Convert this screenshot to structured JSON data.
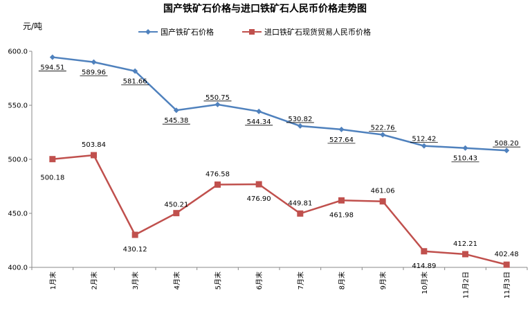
{
  "chart_data": {
    "type": "line",
    "title": "国产铁矿石价格与进口铁矿石人民币价格走势图",
    "ylabel": "元/吨",
    "xlabel": "",
    "ylim": [
      400,
      600
    ],
    "yticks": [
      "600.0",
      "550.0",
      "500.0",
      "450.0",
      "400.0"
    ],
    "grid": false,
    "legend_position": "top",
    "categories": [
      "1月末",
      "2月末",
      "3月末",
      "4月末",
      "5月末",
      "6月末",
      "7月末",
      "8月末",
      "9月末",
      "10月末",
      "11月2日",
      "11月3日"
    ],
    "series": [
      {
        "name": "国产铁矿石价格",
        "color": "#4F81BD",
        "marker": "diamond",
        "values": [
          594.51,
          589.96,
          581.66,
          545.38,
          550.75,
          544.34,
          530.82,
          527.64,
          522.76,
          512.42,
          510.43,
          508.2
        ],
        "labels": [
          "594.51",
          "589.96",
          "581.66",
          "545.38",
          "550.75",
          "544.34",
          "530.82",
          "527.64",
          "522.76",
          "512.42",
          "510.43",
          "508.20"
        ]
      },
      {
        "name": "进口铁矿石现货贸易人民币价格",
        "color": "#C0504D",
        "marker": "square",
        "values": [
          500.18,
          503.84,
          430.12,
          450.21,
          476.58,
          476.9,
          449.81,
          461.98,
          461.06,
          414.89,
          412.21,
          402.48
        ],
        "labels": [
          "500.18",
          "503.84",
          "430.12",
          "450.21",
          "476.58",
          "476.90",
          "449.81",
          "461.98",
          "461.06",
          "414.89",
          "412.21",
          "402.48"
        ]
      }
    ]
  }
}
